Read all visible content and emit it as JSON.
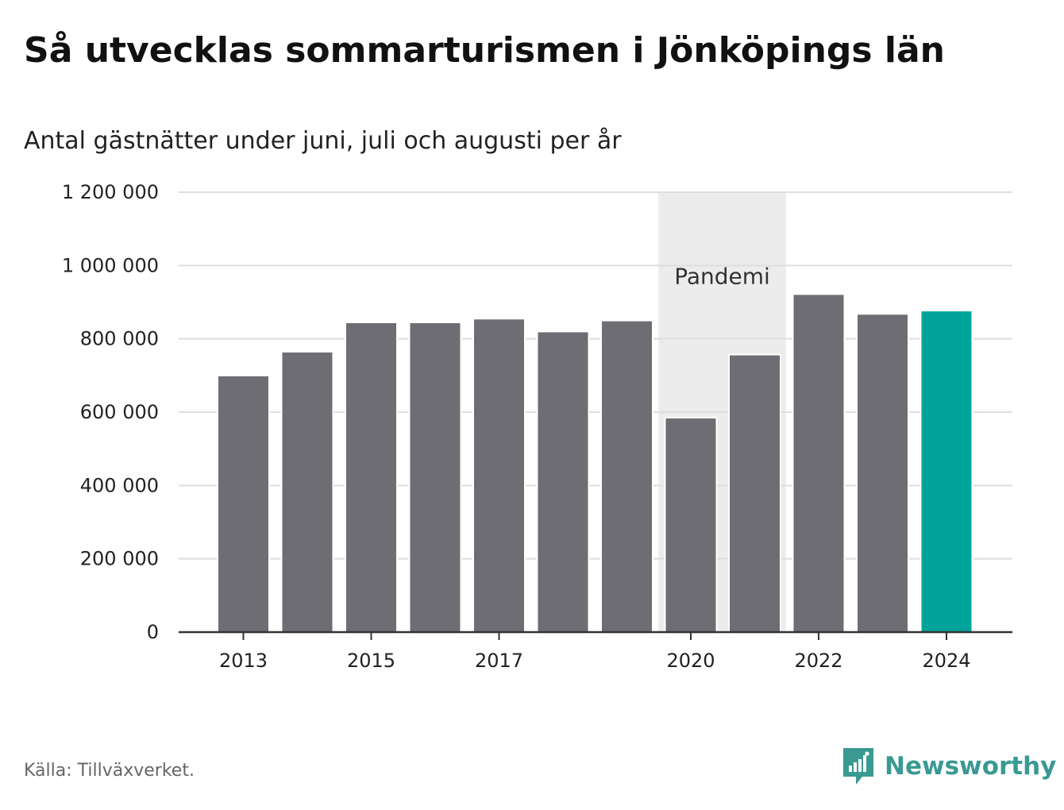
{
  "chart_data": {
    "type": "bar",
    "title": "Så utvecklas sommarturismen i Jönköpings län",
    "subtitle": "Antal gästnätter under juni, juli och augusti per år",
    "categories": [
      2013,
      2014,
      2015,
      2016,
      2017,
      2018,
      2019,
      2020,
      2021,
      2022,
      2023,
      2024
    ],
    "values": [
      700000,
      765000,
      845000,
      845000,
      855000,
      820000,
      850000,
      585000,
      757000,
      922000,
      868000,
      877000
    ],
    "x_tick_labels": [
      "2013",
      "2015",
      "2017",
      "2020",
      "2022",
      "2024"
    ],
    "y_ticks": [
      0,
      200000,
      400000,
      600000,
      800000,
      1000000,
      1200000
    ],
    "y_tick_labels": [
      "0",
      "200 000",
      "400 000",
      "600 000",
      "800 000",
      "1 000 000",
      "1 200 000"
    ],
    "ylim": [
      0,
      1200000
    ],
    "grid": true,
    "highlight_category": 2024,
    "annotation": {
      "label": "Pandemi",
      "from": 2020,
      "to": 2021
    },
    "colors": {
      "bar": "#6e6d73",
      "highlight": "#00a49a",
      "band": "#ececec",
      "grid": "#dedede",
      "axis": "#333333"
    }
  },
  "source": "Källa: Tillväxverket.",
  "brand": {
    "name": "Newsworthy",
    "icon": "newsworthy-logo-icon",
    "color": "#3a9a93"
  }
}
